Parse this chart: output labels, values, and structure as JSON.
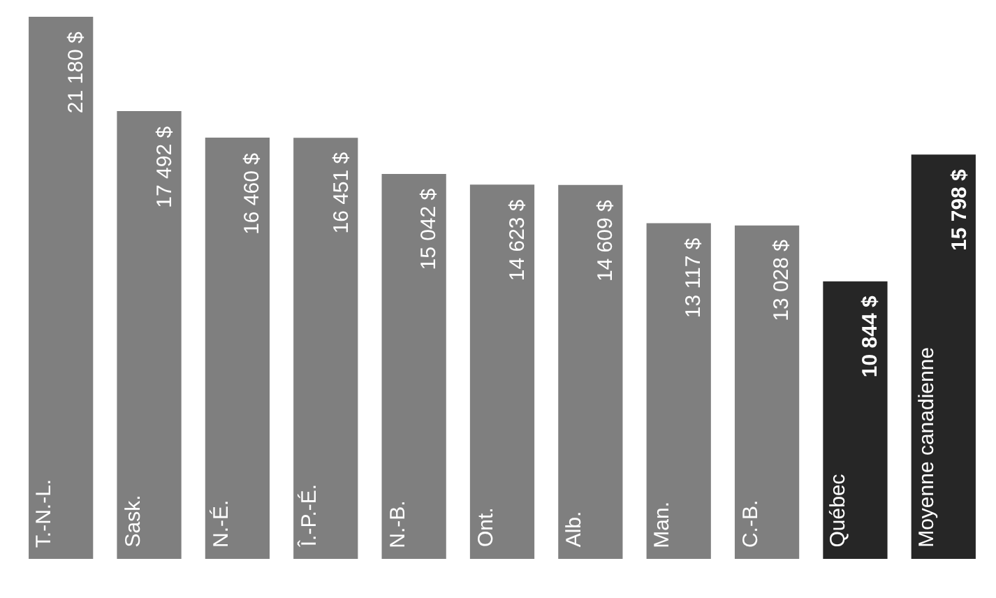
{
  "chart_data": {
    "type": "bar",
    "categories": [
      "T.-N.-L.",
      "Sask.",
      "N.-É.",
      "Î.-P.-É.",
      "N.-B.",
      "Ont.",
      "Alb.",
      "Man.",
      "C.-B.",
      "Québec",
      "Moyenne canadienne"
    ],
    "values": [
      21180,
      17492,
      16460,
      16451,
      15042,
      14623,
      14609,
      13117,
      13028,
      10844,
      15798
    ],
    "value_labels": [
      "21 180 $",
      "17 492 $",
      "16 460 $",
      "16 451 $",
      "15 042 $",
      "14 623 $",
      "14 609 $",
      "13 117 $",
      "13 028 $",
      "10 844 $",
      "15 798 $"
    ],
    "colors": [
      "#7f7f7f",
      "#7f7f7f",
      "#7f7f7f",
      "#7f7f7f",
      "#7f7f7f",
      "#7f7f7f",
      "#7f7f7f",
      "#7f7f7f",
      "#7f7f7f",
      "#262626",
      "#262626"
    ],
    "grid": false
  }
}
